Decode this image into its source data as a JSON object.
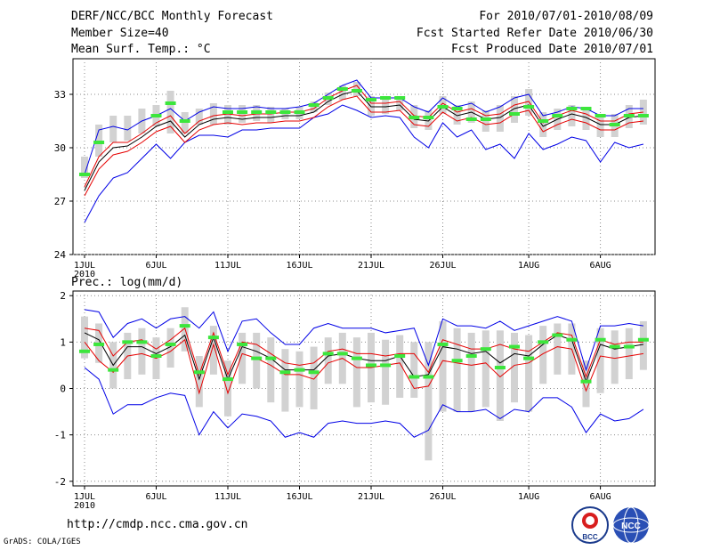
{
  "header": {
    "left": [
      "DERF/NCC/BCC Monthly Forecast",
      "Member Size=40",
      "Mean Surf. Temp.: °C"
    ],
    "right": [
      "For 2010/07/01-2010/08/09",
      "Fcst Started Refer Date 2010/06/30",
      "Fcst Produced Date 2010/07/01"
    ]
  },
  "footer": {
    "url": "http://cmdp.ncc.cma.gov.cn",
    "credit": "GrADS: COLA/IGES",
    "logo_bcc": "BCC",
    "logo_ncc": "NCC"
  },
  "colors": {
    "box": "#d2d2d2",
    "green": "#3ce63c",
    "blue": "#0000e6",
    "red": "#e60000",
    "black": "#000000",
    "grid": "#8c8c8c"
  },
  "chart_data": [
    {
      "type": "line",
      "title": "Mean Surf. Temp.: °C",
      "n_days": 40,
      "start": "2010-07-01",
      "x_ticks": [
        {
          "day": 1,
          "label": "1JUL"
        },
        {
          "day": 6,
          "label": "6JUL"
        },
        {
          "day": 11,
          "label": "11JUL"
        },
        {
          "day": 16,
          "label": "16JUL"
        },
        {
          "day": 21,
          "label": "21JUL"
        },
        {
          "day": 26,
          "label": "26JUL"
        },
        {
          "day": 32,
          "label": "1AUG"
        },
        {
          "day": 37,
          "label": "6AUG"
        }
      ],
      "year_label": "2010",
      "ylim": [
        24,
        35
      ],
      "y_ticks": [
        24,
        27,
        30,
        33
      ],
      "series": [
        {
          "name": "max",
          "color": "blue",
          "values": [
            28.5,
            31,
            31.2,
            31,
            31.5,
            31.8,
            32.2,
            31.5,
            32,
            32.3,
            32.2,
            32.2,
            32.3,
            32.2,
            32.2,
            32.3,
            32.5,
            33,
            33.5,
            33.8,
            32.8,
            32.8,
            32.8,
            32.3,
            32,
            32.8,
            32.3,
            32.5,
            32,
            32.3,
            32.8,
            33,
            31.8,
            32,
            32.3,
            32.2,
            31.8,
            31.8,
            32.2,
            32.2
          ]
        },
        {
          "name": "upper",
          "color": "red",
          "values": [
            27.8,
            29.5,
            30.3,
            30.3,
            30.8,
            31.4,
            31.8,
            30.8,
            31.5,
            31.8,
            31.9,
            31.8,
            31.9,
            31.9,
            32,
            32,
            32.2,
            32.8,
            33.2,
            33.5,
            32.5,
            32.5,
            32.6,
            31.8,
            31.7,
            32.5,
            32,
            32.2,
            31.8,
            31.9,
            32.4,
            32.6,
            31.4,
            31.8,
            32.1,
            31.9,
            31.5,
            31.5,
            31.9,
            32
          ]
        },
        {
          "name": "mean",
          "color": "black",
          "values": [
            27.6,
            29.2,
            30,
            30.1,
            30.6,
            31.2,
            31.5,
            30.6,
            31.3,
            31.6,
            31.7,
            31.6,
            31.7,
            31.7,
            31.8,
            31.8,
            32,
            32.6,
            33,
            33.2,
            32.3,
            32.3,
            32.4,
            31.6,
            31.5,
            32.3,
            31.8,
            32,
            31.6,
            31.7,
            32.2,
            32.4,
            31.2,
            31.6,
            31.9,
            31.7,
            31.3,
            31.3,
            31.7,
            31.8
          ]
        },
        {
          "name": "lower",
          "color": "red",
          "values": [
            27.3,
            28.8,
            29.6,
            29.8,
            30.3,
            30.9,
            31.2,
            30.3,
            31,
            31.3,
            31.4,
            31.3,
            31.4,
            31.4,
            31.5,
            31.5,
            31.7,
            32.3,
            32.7,
            32.9,
            32,
            32,
            32.1,
            31.3,
            31.2,
            32,
            31.5,
            31.7,
            31.3,
            31.4,
            31.9,
            32.1,
            30.9,
            31.3,
            31.6,
            31.4,
            31,
            31,
            31.4,
            31.5
          ]
        },
        {
          "name": "min",
          "color": "blue",
          "values": [
            25.8,
            27.3,
            28.3,
            28.6,
            29.4,
            30.2,
            29.4,
            30.3,
            30.7,
            30.7,
            30.6,
            31,
            31,
            31.1,
            31.1,
            31.1,
            31.7,
            31.9,
            32.4,
            32.1,
            31.7,
            31.8,
            31.7,
            30.6,
            30,
            31.4,
            30.6,
            31,
            29.9,
            30.2,
            29.4,
            30.8,
            29.9,
            30.2,
            30.6,
            30.4,
            29.2,
            30.3,
            30,
            30.2
          ]
        },
        {
          "name": "box_top",
          "color": "box",
          "values": [
            29.5,
            31.3,
            31.8,
            31.8,
            32.2,
            32.4,
            33.2,
            32,
            32.2,
            32.5,
            32.4,
            32.4,
            32.4,
            32.3,
            32.2,
            32.3,
            32.6,
            33.1,
            33.5,
            33.7,
            32.9,
            32.9,
            32.9,
            32.4,
            32.1,
            32.9,
            32.4,
            32.6,
            32.1,
            32.4,
            32.9,
            33.3,
            32,
            32.2,
            32.4,
            32.3,
            31.8,
            31.9,
            32.4,
            32.7
          ]
        },
        {
          "name": "box_bottom",
          "color": "box",
          "values": [
            28.3,
            29.5,
            30.3,
            30.4,
            30.8,
            31.2,
            30.8,
            30.8,
            31.3,
            31.3,
            31.3,
            31.4,
            31.5,
            31.4,
            31.6,
            31.6,
            32,
            32.4,
            32.7,
            32.9,
            31.8,
            31.9,
            32.1,
            31.1,
            31,
            31.9,
            31.3,
            31.4,
            30.9,
            30.9,
            31.4,
            31.8,
            30.6,
            31,
            31.2,
            31,
            30.6,
            30.6,
            31.1,
            31.3
          ]
        },
        {
          "name": "observed",
          "color": "green",
          "values": [
            28.5,
            30.3,
            null,
            null,
            null,
            31.8,
            32.5,
            31.5,
            null,
            null,
            32,
            32,
            32,
            32,
            32,
            32,
            32.4,
            32.8,
            33.3,
            33.2,
            32.7,
            32.8,
            32.8,
            31.7,
            31.7,
            32.3,
            32.2,
            31.6,
            31.6,
            null,
            31.9,
            32.3,
            31.5,
            31.8,
            32.2,
            32.2,
            31.8,
            31.3,
            31.8,
            31.8
          ]
        }
      ]
    },
    {
      "type": "line",
      "title": "Prec.: log(mm/d)",
      "n_days": 40,
      "start": "2010-07-01",
      "x_ticks": [
        {
          "day": 1,
          "label": "1JUL"
        },
        {
          "day": 6,
          "label": "6JUL"
        },
        {
          "day": 11,
          "label": "11JUL"
        },
        {
          "day": 16,
          "label": "16JUL"
        },
        {
          "day": 21,
          "label": "21JUL"
        },
        {
          "day": 26,
          "label": "26JUL"
        },
        {
          "day": 32,
          "label": "1AUG"
        },
        {
          "day": 37,
          "label": "6AUG"
        }
      ],
      "year_label": "2010",
      "ylim": [
        -2.1,
        2.1
      ],
      "y_ticks": [
        -2,
        -1,
        0,
        1,
        2
      ],
      "series": [
        {
          "name": "max",
          "color": "blue",
          "values": [
            1.7,
            1.65,
            1.1,
            1.4,
            1.5,
            1.3,
            1.5,
            1.55,
            1.3,
            1.65,
            0.8,
            1.45,
            1.5,
            1.2,
            0.95,
            0.95,
            1.3,
            1.4,
            1.3,
            1.3,
            1.3,
            1.2,
            1.25,
            1.3,
            0.5,
            1.5,
            1.35,
            1.35,
            1.3,
            1.45,
            1.25,
            1.35,
            1.45,
            1.55,
            1.45,
            0.4,
            1.35,
            1.35,
            1.4,
            1.35
          ]
        },
        {
          "name": "upper",
          "color": "red",
          "values": [
            1.3,
            1.25,
            0.7,
            1.0,
            1.05,
            0.85,
            1.05,
            1.3,
            0.3,
            1.2,
            0.3,
            1.0,
            0.95,
            0.75,
            0.55,
            0.5,
            0.55,
            0.8,
            0.85,
            0.75,
            0.75,
            0.7,
            0.75,
            0.75,
            0.35,
            1.05,
            0.95,
            0.85,
            0.85,
            0.95,
            0.85,
            0.8,
            1.0,
            1.2,
            1.15,
            0.25,
            1.05,
            0.95,
            1.0,
            1.0
          ]
        },
        {
          "name": "mean",
          "color": "black",
          "values": [
            1.2,
            1.05,
            0.5,
            0.9,
            0.9,
            0.75,
            0.9,
            1.15,
            0.2,
            1.1,
            0.2,
            0.9,
            0.8,
            0.65,
            0.4,
            0.4,
            0.4,
            0.7,
            0.75,
            0.65,
            0.6,
            0.6,
            0.7,
            0.25,
            0.3,
            0.9,
            0.85,
            0.75,
            0.8,
            0.55,
            0.75,
            0.7,
            0.95,
            1.15,
            1.05,
            0.15,
            0.95,
            0.85,
            0.9,
            0.95
          ]
        },
        {
          "name": "lower",
          "color": "red",
          "values": [
            1.0,
            0.6,
            0.35,
            0.7,
            0.75,
            0.65,
            0.8,
            1.05,
            -0.1,
            0.95,
            -0.1,
            0.75,
            0.65,
            0.5,
            0.3,
            0.3,
            0.2,
            0.55,
            0.65,
            0.45,
            0.45,
            0.5,
            0.55,
            0.0,
            0.05,
            0.6,
            0.55,
            0.5,
            0.55,
            0.25,
            0.5,
            0.55,
            0.75,
            0.9,
            0.85,
            -0.05,
            0.7,
            0.65,
            0.7,
            0.75
          ]
        },
        {
          "name": "min",
          "color": "blue",
          "values": [
            0.45,
            0.2,
            -0.55,
            -0.35,
            -0.35,
            -0.2,
            -0.1,
            -0.15,
            -1.0,
            -0.5,
            -0.85,
            -0.55,
            -0.6,
            -0.7,
            -1.05,
            -0.95,
            -1.05,
            -0.75,
            -0.7,
            -0.75,
            -0.75,
            -0.7,
            -0.75,
            -1.05,
            -0.9,
            -0.35,
            -0.5,
            -0.5,
            -0.45,
            -0.65,
            -0.45,
            -0.5,
            -0.2,
            -0.2,
            -0.4,
            -0.95,
            -0.55,
            -0.7,
            -0.65,
            -0.45
          ]
        },
        {
          "name": "box_top",
          "color": "box",
          "values": [
            1.55,
            1.4,
            1.0,
            1.2,
            1.3,
            1.1,
            1.3,
            1.75,
            0.7,
            1.35,
            0.6,
            1.2,
            1.2,
            1.1,
            0.85,
            0.8,
            0.9,
            1.1,
            1.2,
            1.1,
            1.2,
            1.05,
            1.15,
            1.0,
            1.0,
            1.45,
            1.3,
            1.2,
            1.25,
            1.25,
            1.2,
            1.15,
            1.35,
            1.4,
            1.4,
            0.6,
            1.3,
            1.25,
            1.3,
            1.45
          ]
        },
        {
          "name": "box_bottom",
          "color": "box",
          "values": [
            0.65,
            0.55,
            0.0,
            0.2,
            0.3,
            0.2,
            0.45,
            0.8,
            -0.4,
            0.3,
            -0.6,
            0.1,
            0.0,
            -0.3,
            -0.5,
            -0.4,
            -0.45,
            0.1,
            0.1,
            -0.4,
            -0.3,
            -0.35,
            -0.2,
            -0.2,
            -1.55,
            -0.5,
            -0.5,
            -0.5,
            -0.4,
            -0.7,
            -0.3,
            -0.5,
            0.1,
            0.3,
            0.3,
            -0.4,
            -0.1,
            0.1,
            0.2,
            0.4
          ]
        },
        {
          "name": "observed",
          "color": "green",
          "values": [
            0.8,
            0.95,
            0.4,
            1.0,
            1.0,
            0.7,
            0.95,
            1.35,
            0.35,
            1.1,
            0.2,
            0.95,
            0.65,
            0.65,
            0.35,
            0.4,
            0.35,
            0.75,
            0.75,
            0.65,
            0.5,
            0.5,
            0.7,
            0.25,
            0.25,
            0.95,
            0.6,
            0.7,
            0.85,
            0.45,
            0.9,
            0.65,
            1.0,
            1.15,
            1.05,
            0.15,
            1.05,
            0.9,
            0.9,
            1.05
          ]
        }
      ]
    }
  ]
}
